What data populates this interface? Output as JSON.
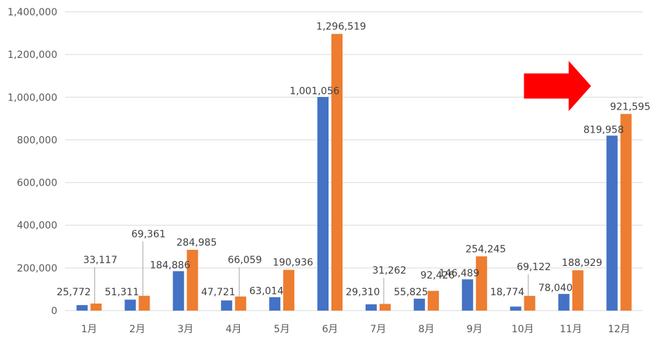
{
  "colors": {
    "series_a": "#4472c4",
    "series_b": "#ed7d31",
    "arrow": "#ff0000",
    "grid": "#d9d9d9"
  },
  "annotation": {
    "shape": "arrow-right",
    "points_to_category": "12月"
  },
  "chart_data": {
    "type": "bar",
    "title": "",
    "xlabel": "",
    "ylabel": "",
    "ylim": [
      0,
      1400000
    ],
    "yticks": [
      0,
      200000,
      400000,
      600000,
      800000,
      1000000,
      1200000,
      1400000
    ],
    "ytick_labels": [
      "0",
      "200,000",
      "400,000",
      "600,000",
      "800,000",
      "1,000,000",
      "1,200,000",
      "1,400,000"
    ],
    "grid": true,
    "legend": "none",
    "categories": [
      "1月",
      "2月",
      "3月",
      "4月",
      "5月",
      "6月",
      "7月",
      "8月",
      "9月",
      "10月",
      "11月",
      "12月"
    ],
    "series": [
      {
        "values": [
          25772,
          51311,
          184886,
          47721,
          63014,
          1001056,
          29310,
          55825,
          146489,
          18774,
          78040,
          819958
        ],
        "labels": [
          "25,772",
          "51,311",
          "184,886",
          "47,721",
          "63,014",
          "1,001,056",
          "29,310",
          "55,825",
          "146,489",
          "18,774",
          "78,040",
          "819,958"
        ]
      },
      {
        "values": [
          33117,
          69361,
          284985,
          66059,
          190936,
          1296519,
          31262,
          92426,
          254245,
          69122,
          188929,
          921595
        ],
        "labels": [
          "33,117",
          "69,361",
          "284,985",
          "66,059",
          "190,936",
          "1,296,519",
          "31,262",
          "92,426",
          "254,245",
          "69,122",
          "188,929",
          "921,595"
        ]
      }
    ]
  }
}
